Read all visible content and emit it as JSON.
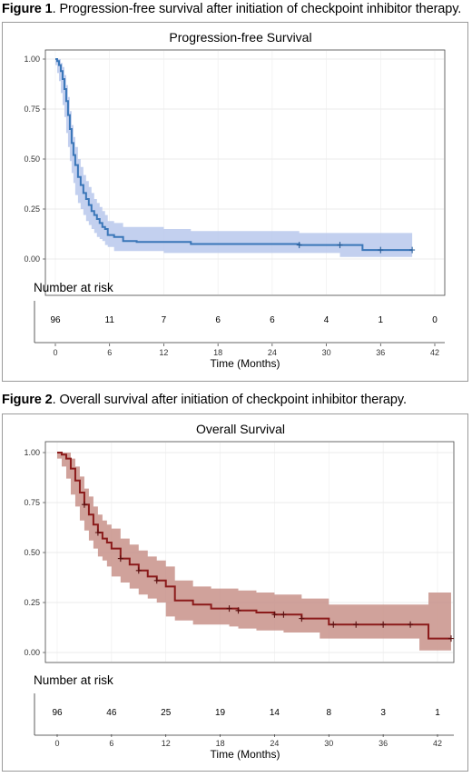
{
  "figures": [
    {
      "caption_bold": "Figure 1",
      "caption_rest": ". Progression-free survival after initiation of checkpoint inhibitor therapy.",
      "risk_title": "Number at risk",
      "chart_data": {
        "type": "line",
        "title": "Progression-free Survival",
        "xlabel": "Time (Months)",
        "ylabel": "",
        "xlim": [
          0,
          42
        ],
        "ylim": [
          0,
          1
        ],
        "xticks": [
          0,
          6,
          12,
          18,
          24,
          30,
          36,
          42
        ],
        "yticks": [
          "0.00",
          "0.25",
          "0.50",
          "0.75",
          "1.00"
        ],
        "grid": true,
        "color": "#3a76b8",
        "band_color": "#b8c8ec",
        "series": [
          {
            "x": [
              0,
              0.2,
              0.4,
              0.6,
              0.8,
              1.0,
              1.2,
              1.4,
              1.6,
              1.8,
              2.0,
              2.2,
              2.5,
              2.8,
              3.1,
              3.4,
              3.7,
              4.0,
              4.3,
              4.6,
              4.9,
              5.2,
              5.5,
              5.8,
              6.5,
              7.5,
              9,
              10,
              12,
              15,
              20,
              27,
              31.5,
              34,
              36,
              39.5
            ],
            "y": [
              1.0,
              0.99,
              0.97,
              0.94,
              0.9,
              0.85,
              0.79,
              0.72,
              0.65,
              0.58,
              0.52,
              0.47,
              0.41,
              0.37,
              0.33,
              0.3,
              0.27,
              0.24,
              0.22,
              0.2,
              0.18,
              0.16,
              0.15,
              0.12,
              0.11,
              0.09,
              0.085,
              0.085,
              0.085,
              0.075,
              0.075,
              0.07,
              0.07,
              0.045,
              0.045,
              0.045
            ],
            "lower": [
              1.0,
              0.97,
              0.93,
              0.89,
              0.83,
              0.77,
              0.71,
              0.63,
              0.56,
              0.49,
              0.43,
              0.38,
              0.32,
              0.28,
              0.25,
              0.22,
              0.19,
              0.17,
              0.15,
              0.13,
              0.11,
              0.1,
              0.09,
              0.07,
              0.06,
              0.04,
              0.04,
              0.04,
              0.04,
              0.03,
              0.03,
              0.03,
              0.03,
              0.01,
              0.01,
              0.01
            ],
            "upper": [
              1.0,
              1.0,
              1.0,
              0.98,
              0.96,
              0.92,
              0.87,
              0.81,
              0.74,
              0.67,
              0.61,
              0.56,
              0.5,
              0.46,
              0.42,
              0.39,
              0.36,
              0.33,
              0.3,
              0.28,
              0.26,
              0.24,
              0.22,
              0.19,
              0.18,
              0.16,
              0.16,
              0.16,
              0.15,
              0.14,
              0.14,
              0.13,
              0.13,
              0.13,
              0.13,
              0.13
            ],
            "censored": [
              [
                27,
                0.07
              ],
              [
                31.5,
                0.07
              ],
              [
                36,
                0.045
              ],
              [
                39.5,
                0.045
              ]
            ]
          }
        ],
        "risk_table": [
          {
            "x": 0,
            "n": "96"
          },
          {
            "x": 6,
            "n": "11"
          },
          {
            "x": 12,
            "n": "7"
          },
          {
            "x": 18,
            "n": "6"
          },
          {
            "x": 24,
            "n": "6"
          },
          {
            "x": 30,
            "n": "4"
          },
          {
            "x": 36,
            "n": "1"
          },
          {
            "x": 42,
            "n": "0"
          }
        ]
      }
    },
    {
      "caption_bold": "Figure 2",
      "caption_rest": ". Overall survival after initiation of checkpoint inhibitor therapy.",
      "risk_title": "Number at risk",
      "chart_data": {
        "type": "line",
        "title": "Overall Survival",
        "xlabel": "Time (Months)",
        "ylabel": "",
        "xlim": [
          0,
          42
        ],
        "ylim": [
          0,
          1
        ],
        "xticks": [
          0,
          6,
          12,
          18,
          24,
          30,
          36,
          42
        ],
        "yticks": [
          "0.00",
          "0.25",
          "0.50",
          "0.75",
          "1.00"
        ],
        "grid": true,
        "color": "#8b1a1a",
        "band_color": "#c8928a",
        "series": [
          {
            "x": [
              0,
              0.5,
              1,
              1.5,
              2,
              2.5,
              3,
              3.5,
              4,
              4.5,
              5,
              5.5,
              6,
              7,
              8,
              9,
              10,
              11,
              12,
              13,
              15,
              17,
              19,
              20,
              22,
              24,
              25,
              27,
              29,
              30,
              33,
              36,
              40,
              41,
              42,
              43.5
            ],
            "y": [
              1.0,
              0.99,
              0.97,
              0.92,
              0.86,
              0.8,
              0.74,
              0.69,
              0.64,
              0.6,
              0.57,
              0.55,
              0.52,
              0.47,
              0.44,
              0.41,
              0.38,
              0.36,
              0.33,
              0.26,
              0.24,
              0.22,
              0.22,
              0.21,
              0.2,
              0.19,
              0.19,
              0.17,
              0.17,
              0.14,
              0.14,
              0.14,
              0.14,
              0.07,
              0.07,
              0.07
            ],
            "lower": [
              1.0,
              0.97,
              0.93,
              0.87,
              0.79,
              0.73,
              0.66,
              0.61,
              0.56,
              0.52,
              0.48,
              0.46,
              0.43,
              0.38,
              0.35,
              0.32,
              0.29,
              0.27,
              0.25,
              0.18,
              0.16,
              0.14,
              0.14,
              0.13,
              0.12,
              0.11,
              0.11,
              0.1,
              0.1,
              0.07,
              0.07,
              0.07,
              0.07,
              0.01,
              0.01,
              0.01
            ],
            "upper": [
              1.0,
              1.0,
              1.0,
              0.97,
              0.93,
              0.88,
              0.82,
              0.78,
              0.73,
              0.69,
              0.66,
              0.64,
              0.62,
              0.57,
              0.54,
              0.51,
              0.48,
              0.46,
              0.43,
              0.36,
              0.33,
              0.32,
              0.32,
              0.31,
              0.3,
              0.29,
              0.29,
              0.27,
              0.27,
              0.24,
              0.24,
              0.24,
              0.24,
              0.3,
              0.3,
              0.3
            ],
            "censored": [
              [
                3,
                0.74
              ],
              [
                4.5,
                0.6
              ],
              [
                7,
                0.47
              ],
              [
                9,
                0.41
              ],
              [
                11,
                0.36
              ],
              [
                19,
                0.22
              ],
              [
                20,
                0.21
              ],
              [
                24,
                0.19
              ],
              [
                25,
                0.19
              ],
              [
                27,
                0.17
              ],
              [
                30.5,
                0.14
              ],
              [
                33,
                0.14
              ],
              [
                36,
                0.14
              ],
              [
                39,
                0.14
              ],
              [
                43.5,
                0.07
              ]
            ]
          }
        ],
        "risk_table": [
          {
            "x": 0,
            "n": "96"
          },
          {
            "x": 6,
            "n": "46"
          },
          {
            "x": 12,
            "n": "25"
          },
          {
            "x": 18,
            "n": "19"
          },
          {
            "x": 24,
            "n": "14"
          },
          {
            "x": 30,
            "n": "8"
          },
          {
            "x": 36,
            "n": "3"
          },
          {
            "x": 42,
            "n": "1"
          }
        ]
      }
    }
  ]
}
